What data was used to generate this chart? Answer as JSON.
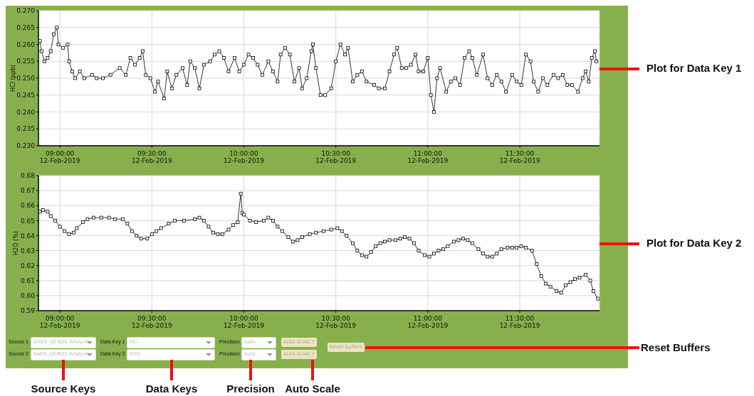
{
  "chart_data": [
    {
      "type": "line",
      "ylabel": "HCl (ppb)",
      "xlim": [
        "2019-02-12T08:53",
        "2019-02-12T11:56"
      ],
      "xticks": [
        {
          "value": "2019-02-12T09:00",
          "label": "09:00:00\n12-Feb-2019"
        },
        {
          "value": "2019-02-12T09:30",
          "label": "09:30:00\n12-Feb-2019"
        },
        {
          "value": "2019-02-12T10:00",
          "label": "10:00:00\n12-Feb-2019"
        },
        {
          "value": "2019-02-12T10:30",
          "label": "10:30:00\n12-Feb-2019"
        },
        {
          "value": "2019-02-12T11:00",
          "label": "11:00:00\n12-Feb-2019"
        },
        {
          "value": "2019-02-12T11:30",
          "label": "11:30:00\n12-Feb-2019"
        }
      ],
      "ylim": [
        0.23,
        0.27
      ],
      "yticks": [
        {
          "value": 0.23,
          "label": "0.230"
        },
        0.235,
        {
          "value": 0.24,
          "label": "0.240"
        },
        0.245,
        {
          "value": 0.25,
          "label": "0.250"
        },
        0.255,
        {
          "value": 0.26,
          "label": "0.260"
        },
        0.265,
        {
          "value": 0.27,
          "label": "0.270"
        }
      ],
      "grid": true,
      "marker": "square",
      "annotations": [
        "Plot for Data Key 1"
      ],
      "series": [
        {
          "color": "#000000",
          "x": [
            "2019-02-12T08:53:30",
            "2019-02-12T08:54:00",
            "2019-02-12T08:55:00",
            "2019-02-12T08:56:00",
            "2019-02-12T08:57:00",
            "2019-02-12T08:58:00",
            "2019-02-12T08:59:00",
            "2019-02-12T08:59:30",
            "2019-02-12T09:01:00",
            "2019-02-12T09:02:30",
            "2019-02-12T09:03:00",
            "2019-02-12T09:04:00",
            "2019-02-12T09:05:00",
            "2019-02-12T09:06:30",
            "2019-02-12T09:08:00",
            "2019-02-12T09:10:30",
            "2019-02-12T09:12:00",
            "2019-02-12T09:14:00",
            "2019-02-12T09:16:30",
            "2019-02-12T09:19:30",
            "2019-02-12T09:21:30",
            "2019-02-12T09:23:00",
            "2019-02-12T09:24:30",
            "2019-02-12T09:26:00",
            "2019-02-12T09:27:00",
            "2019-02-12T09:28:00",
            "2019-02-12T09:29:30",
            "2019-02-12T09:31:00",
            "2019-02-12T09:32:00",
            "2019-02-12T09:34:00",
            "2019-02-12T09:35:00",
            "2019-02-12T09:36:30",
            "2019-02-12T09:38:00",
            "2019-02-12T09:40:00",
            "2019-02-12T09:41:30",
            "2019-02-12T09:42:30",
            "2019-02-12T09:44:00",
            "2019-02-12T09:45:30",
            "2019-02-12T09:47:00",
            "2019-02-12T09:49:00",
            "2019-02-12T09:50:30",
            "2019-02-12T09:52:00",
            "2019-02-12T09:53:30",
            "2019-02-12T09:55:00",
            "2019-02-12T09:57:00",
            "2019-02-12T09:58:30",
            "2019-02-12T10:00:00",
            "2019-02-12T10:01:30",
            "2019-02-12T10:03:00",
            "2019-02-12T10:04:30",
            "2019-02-12T10:06:00",
            "2019-02-12T10:08:00",
            "2019-02-12T10:09:30",
            "2019-02-12T10:11:00",
            "2019-02-12T10:12:00",
            "2019-02-12T10:13:30",
            "2019-02-12T10:15:00",
            "2019-02-12T10:16:30",
            "2019-02-12T10:18:00",
            "2019-02-12T10:19:00",
            "2019-02-12T10:20:30",
            "2019-02-12T10:22:00",
            "2019-02-12T10:22:30",
            "2019-02-12T10:23:30",
            "2019-02-12T10:25:00",
            "2019-02-12T10:26:30",
            "2019-02-12T10:28:30",
            "2019-02-12T10:30:00",
            "2019-02-12T10:31:30",
            "2019-02-12T10:33:00",
            "2019-02-12T10:34:00",
            "2019-02-12T10:35:30",
            "2019-02-12T10:37:00",
            "2019-02-12T10:38:30",
            "2019-02-12T10:40:00",
            "2019-02-12T10:42:30",
            "2019-02-12T10:44:00",
            "2019-02-12T10:46:00",
            "2019-02-12T10:47:30",
            "2019-02-12T10:49:00",
            "2019-02-12T10:50:00",
            "2019-02-12T10:51:30",
            "2019-02-12T10:53:00",
            "2019-02-12T10:54:30",
            "2019-02-12T10:56:00",
            "2019-02-12T10:57:00",
            "2019-02-12T10:58:30",
            "2019-02-12T11:00:00",
            "2019-02-12T11:01:00",
            "2019-02-12T11:02:00",
            "2019-02-12T11:03:00",
            "2019-02-12T11:04:00",
            "2019-02-12T11:06:00",
            "2019-02-12T11:07:30",
            "2019-02-12T11:09:00",
            "2019-02-12T11:10:30",
            "2019-02-12T11:12:00",
            "2019-02-12T11:13:30",
            "2019-02-12T11:14:30",
            "2019-02-12T11:16:00",
            "2019-02-12T11:18:00",
            "2019-02-12T11:19:30",
            "2019-02-12T11:21:00",
            "2019-02-12T11:22:30",
            "2019-02-12T11:24:00",
            "2019-02-12T11:25:30",
            "2019-02-12T11:27:30",
            "2019-02-12T11:29:00",
            "2019-02-12T11:30:30",
            "2019-02-12T11:32:00",
            "2019-02-12T11:33:30",
            "2019-02-12T11:34:30",
            "2019-02-12T11:36:00",
            "2019-02-12T11:37:30",
            "2019-02-12T11:39:00",
            "2019-02-12T11:41:00",
            "2019-02-12T11:42:30",
            "2019-02-12T11:44:00",
            "2019-02-12T11:45:30",
            "2019-02-12T11:47:00",
            "2019-02-12T11:49:00",
            "2019-02-12T11:50:30",
            "2019-02-12T11:51:30",
            "2019-02-12T11:52:30",
            "2019-02-12T11:53:30",
            "2019-02-12T11:54:30",
            "2019-02-12T11:55:00"
          ],
          "values": [
            0.261,
            0.258,
            0.255,
            0.256,
            0.258,
            0.263,
            0.265,
            0.26,
            0.259,
            0.26,
            0.255,
            0.252,
            0.25,
            0.252,
            0.25,
            0.251,
            0.25,
            0.25,
            0.251,
            0.253,
            0.251,
            0.256,
            0.254,
            0.256,
            0.258,
            0.251,
            0.25,
            0.246,
            0.249,
            0.244,
            0.252,
            0.247,
            0.251,
            0.253,
            0.248,
            0.255,
            0.253,
            0.247,
            0.254,
            0.255,
            0.257,
            0.258,
            0.256,
            0.252,
            0.256,
            0.252,
            0.254,
            0.257,
            0.256,
            0.254,
            0.251,
            0.255,
            0.252,
            0.249,
            0.257,
            0.259,
            0.257,
            0.249,
            0.253,
            0.247,
            0.25,
            0.258,
            0.26,
            0.253,
            0.245,
            0.245,
            0.247,
            0.255,
            0.26,
            0.257,
            0.259,
            0.249,
            0.251,
            0.252,
            0.249,
            0.248,
            0.247,
            0.247,
            0.252,
            0.257,
            0.259,
            0.253,
            0.253,
            0.254,
            0.257,
            0.252,
            0.252,
            0.256,
            0.245,
            0.24,
            0.25,
            0.253,
            0.246,
            0.249,
            0.25,
            0.248,
            0.256,
            0.258,
            0.256,
            0.251,
            0.257,
            0.25,
            0.248,
            0.251,
            0.249,
            0.246,
            0.251,
            0.249,
            0.248,
            0.257,
            0.255,
            0.249,
            0.246,
            0.25,
            0.248,
            0.251,
            0.25,
            0.251,
            0.248,
            0.248,
            0.246,
            0.25,
            0.252,
            0.249,
            0.256,
            0.258,
            0.255
          ]
        }
      ]
    },
    {
      "type": "line",
      "ylabel": "H2O (%)",
      "xlim": [
        "2019-02-12T08:53",
        "2019-02-12T11:56"
      ],
      "xticks": [
        {
          "value": "2019-02-12T09:00",
          "label": "09:00:00\n12-Feb-2019"
        },
        {
          "value": "2019-02-12T09:30",
          "label": "09:30:00\n12-Feb-2019"
        },
        {
          "value": "2019-02-12T10:00",
          "label": "10:00:00\n12-Feb-2019"
        },
        {
          "value": "2019-02-12T10:30",
          "label": "10:30:00\n12-Feb-2019"
        },
        {
          "value": "2019-02-12T11:00",
          "label": "11:00:00\n12-Feb-2019"
        },
        {
          "value": "2019-02-12T11:30",
          "label": "11:30:00\n12-Feb-2019"
        }
      ],
      "ylim": [
        0.59,
        0.68
      ],
      "yticks": [
        0.59,
        {
          "value": 0.6,
          "label": "0.60"
        },
        0.61,
        0.62,
        0.63,
        0.64,
        0.65,
        0.66,
        0.67,
        0.68
      ],
      "grid": true,
      "marker": "square",
      "annotations": [
        "Plot for Data Key 2"
      ],
      "series": [
        {
          "color": "#000000",
          "x": [
            "2019-02-12T08:53:30",
            "2019-02-12T08:54:30",
            "2019-02-12T08:56:00",
            "2019-02-12T08:57:00",
            "2019-02-12T08:58:30",
            "2019-02-12T09:00:00",
            "2019-02-12T09:01:30",
            "2019-02-12T09:03:00",
            "2019-02-12T09:04:30",
            "2019-02-12T09:05:30",
            "2019-02-12T09:07:30",
            "2019-02-12T09:09:00",
            "2019-02-12T09:11:00",
            "2019-02-12T09:13:30",
            "2019-02-12T09:16:00",
            "2019-02-12T09:18:00",
            "2019-02-12T09:20:30",
            "2019-02-12T09:22:00",
            "2019-02-12T09:23:30",
            "2019-02-12T09:25:00",
            "2019-02-12T09:26:30",
            "2019-02-12T09:28:30",
            "2019-02-12T09:30:00",
            "2019-02-12T09:31:30",
            "2019-02-12T09:33:00",
            "2019-02-12T09:35:30",
            "2019-02-12T09:37:30",
            "2019-02-12T09:40:30",
            "2019-02-12T09:44:00",
            "2019-02-12T09:45:30",
            "2019-02-12T09:47:00",
            "2019-02-12T09:48:30",
            "2019-02-12T09:50:00",
            "2019-02-12T09:51:30",
            "2019-02-12T09:53:00",
            "2019-02-12T09:55:00",
            "2019-02-12T09:56:30",
            "2019-02-12T09:58:00",
            "2019-02-12T09:59:00",
            "2019-02-12T09:59:30",
            "2019-02-12T10:00:00",
            "2019-02-12T10:02:00",
            "2019-02-12T10:04:00",
            "2019-02-12T10:06:30",
            "2019-02-12T10:08:00",
            "2019-02-12T10:09:30",
            "2019-02-12T10:11:00",
            "2019-02-12T10:12:30",
            "2019-02-12T10:14:30",
            "2019-02-12T10:16:00",
            "2019-02-12T10:17:30",
            "2019-02-12T10:19:00",
            "2019-02-12T10:21:30",
            "2019-02-12T10:23:30",
            "2019-02-12T10:26:00",
            "2019-02-12T10:28:30",
            "2019-02-12T10:30:30",
            "2019-02-12T10:32:00",
            "2019-02-12T10:33:30",
            "2019-02-12T10:35:30",
            "2019-02-12T10:37:00",
            "2019-02-12T10:38:30",
            "2019-02-12T10:40:00",
            "2019-02-12T10:41:30",
            "2019-02-12T10:43:00",
            "2019-02-12T10:44:30",
            "2019-02-12T10:46:00",
            "2019-02-12T10:47:30",
            "2019-02-12T10:49:30",
            "2019-02-12T10:51:00",
            "2019-02-12T10:52:30",
            "2019-02-12T10:54:00",
            "2019-02-12T10:55:30",
            "2019-02-12T10:57:00",
            "2019-02-12T10:59:00",
            "2019-02-12T11:00:30",
            "2019-02-12T11:02:00",
            "2019-02-12T11:03:30",
            "2019-02-12T11:05:00",
            "2019-02-12T11:06:30",
            "2019-02-12T11:08:30",
            "2019-02-12T11:10:00",
            "2019-02-12T11:11:30",
            "2019-02-12T11:13:00",
            "2019-02-12T11:14:30",
            "2019-02-12T11:16:30",
            "2019-02-12T11:18:00",
            "2019-02-12T11:19:30",
            "2019-02-12T11:21:00",
            "2019-02-12T11:22:30",
            "2019-02-12T11:24:00",
            "2019-02-12T11:26:00",
            "2019-02-12T11:27:30",
            "2019-02-12T11:29:00",
            "2019-02-12T11:30:30",
            "2019-02-12T11:32:00",
            "2019-02-12T11:34:00",
            "2019-02-12T11:35:30",
            "2019-02-12T11:37:00",
            "2019-02-12T11:38:30",
            "2019-02-12T11:40:00",
            "2019-02-12T11:42:00",
            "2019-02-12T11:43:30",
            "2019-02-12T11:45:00",
            "2019-02-12T11:46:30",
            "2019-02-12T11:48:00",
            "2019-02-12T11:49:30",
            "2019-02-12T11:51:30",
            "2019-02-12T11:53:00",
            "2019-02-12T11:54:00",
            "2019-02-12T11:55:30"
          ],
          "values": [
            0.656,
            0.657,
            0.656,
            0.653,
            0.65,
            0.646,
            0.643,
            0.641,
            0.642,
            0.645,
            0.649,
            0.651,
            0.652,
            0.652,
            0.652,
            0.651,
            0.651,
            0.648,
            0.643,
            0.64,
            0.638,
            0.638,
            0.641,
            0.643,
            0.645,
            0.648,
            0.65,
            0.65,
            0.651,
            0.652,
            0.65,
            0.646,
            0.642,
            0.641,
            0.641,
            0.644,
            0.647,
            0.649,
            0.668,
            0.655,
            0.654,
            0.65,
            0.649,
            0.65,
            0.652,
            0.65,
            0.646,
            0.643,
            0.639,
            0.636,
            0.637,
            0.639,
            0.641,
            0.642,
            0.643,
            0.644,
            0.645,
            0.643,
            0.64,
            0.635,
            0.63,
            0.627,
            0.626,
            0.629,
            0.633,
            0.635,
            0.636,
            0.637,
            0.637,
            0.638,
            0.639,
            0.638,
            0.635,
            0.63,
            0.627,
            0.626,
            0.628,
            0.63,
            0.631,
            0.633,
            0.636,
            0.637,
            0.638,
            0.637,
            0.635,
            0.631,
            0.628,
            0.626,
            0.626,
            0.628,
            0.631,
            0.632,
            0.632,
            0.632,
            0.633,
            0.632,
            0.63,
            0.621,
            0.613,
            0.608,
            0.606,
            0.603,
            0.602,
            0.607,
            0.609,
            0.611,
            0.612,
            0.614,
            0.61,
            0.603,
            0.598
          ]
        }
      ]
    },
    {
      "type": "other",
      "annotations": [
        "Source 1",
        "SADS_DCRDS Analysis",
        "Data Key 1",
        "HCl",
        "Precision",
        "auto",
        "Auto-scale Y",
        "Source 2",
        "SADS_DCRDS Analysis",
        "Data Key 2",
        "H2O",
        "Precision",
        "auto",
        "Auto-scale Y",
        "Reset buffers",
        "Source Keys",
        "Data Keys",
        "Precision",
        "Auto Scale",
        "Reset Buffers"
      ]
    }
  ]
}
